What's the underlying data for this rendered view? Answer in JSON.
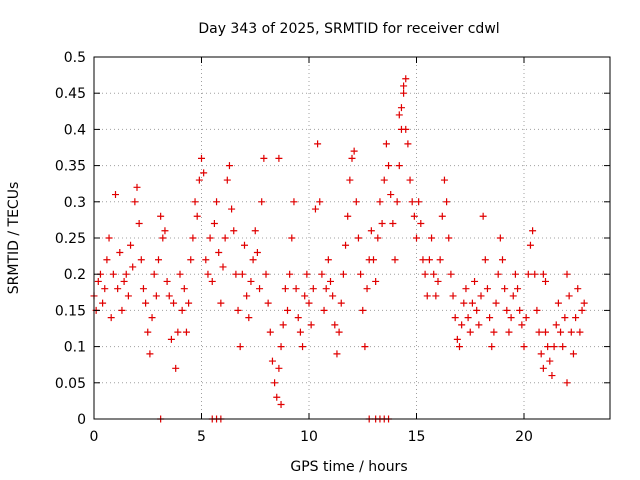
{
  "chart_data": {
    "type": "scatter",
    "title": "Day 343 of 2025, SRMTID for receiver cdwl",
    "xlabel": "GPS time / hours",
    "ylabel": "SRMTID / TECUs",
    "xlim": [
      0,
      24
    ],
    "ylim": [
      0,
      0.5
    ],
    "x_ticks": [
      0,
      5,
      10,
      15,
      20
    ],
    "x_tick_labels": [
      "0",
      "5",
      "10",
      "15",
      "20"
    ],
    "y_ticks": [
      0,
      0.05,
      0.1,
      0.15,
      0.2,
      0.25,
      0.3,
      0.35,
      0.4,
      0.45,
      0.5
    ],
    "y_tick_labels": [
      "0",
      "0.05",
      "0.1",
      "0.15",
      "0.2",
      "0.25",
      "0.3",
      "0.35",
      "0.4",
      "0.45",
      "0.5"
    ],
    "grid": true,
    "marker": "+",
    "color": "#e00000",
    "series": [
      {
        "name": "SRMTID",
        "x": [
          0.0,
          0.1,
          0.2,
          0.3,
          0.4,
          0.5,
          0.6,
          0.7,
          0.8,
          0.9,
          1.0,
          1.1,
          1.2,
          1.3,
          1.4,
          1.5,
          1.6,
          1.7,
          1.8,
          1.9,
          2.0,
          2.1,
          2.2,
          2.3,
          2.4,
          2.5,
          2.6,
          2.7,
          2.8,
          2.9,
          3.0,
          3.1,
          3.2,
          3.3,
          3.4,
          3.5,
          3.6,
          3.7,
          3.8,
          3.9,
          4.0,
          4.1,
          4.2,
          4.3,
          4.4,
          4.5,
          4.6,
          4.7,
          4.8,
          4.9,
          5.0,
          5.1,
          5.2,
          5.3,
          5.4,
          5.5,
          5.6,
          5.7,
          5.8,
          5.9,
          6.0,
          6.1,
          6.2,
          6.3,
          6.4,
          6.5,
          6.6,
          6.7,
          6.8,
          6.9,
          7.0,
          7.1,
          7.2,
          7.3,
          7.4,
          7.5,
          7.6,
          7.7,
          7.8,
          7.9,
          8.0,
          8.1,
          8.2,
          8.3,
          8.4,
          8.5,
          8.6,
          8.7,
          8.8,
          8.9,
          9.0,
          9.1,
          9.2,
          9.3,
          9.4,
          9.5,
          9.6,
          9.7,
          9.8,
          9.9,
          10.0,
          10.1,
          10.2,
          10.3,
          10.4,
          10.5,
          10.6,
          10.7,
          10.8,
          10.9,
          11.0,
          11.1,
          11.2,
          11.3,
          11.4,
          11.5,
          11.6,
          11.7,
          11.8,
          11.9,
          12.0,
          12.1,
          12.2,
          12.3,
          12.4,
          12.5,
          12.6,
          12.7,
          12.8,
          12.9,
          13.0,
          13.1,
          13.2,
          13.3,
          13.4,
          13.5,
          13.6,
          13.7,
          13.8,
          13.9,
          14.0,
          14.1,
          14.2,
          14.3,
          14.4,
          14.5,
          14.6,
          14.7,
          14.8,
          14.9,
          15.0,
          15.1,
          15.2,
          15.3,
          15.4,
          15.5,
          15.6,
          15.7,
          15.8,
          15.9,
          16.0,
          16.1,
          16.2,
          16.3,
          16.4,
          16.5,
          16.6,
          16.7,
          16.8,
          16.9,
          17.0,
          17.1,
          17.2,
          17.3,
          17.4,
          17.5,
          17.6,
          17.7,
          17.8,
          17.9,
          18.0,
          18.1,
          18.2,
          18.3,
          18.4,
          18.5,
          18.6,
          18.7,
          18.8,
          18.9,
          19.0,
          19.1,
          19.2,
          19.3,
          19.4,
          19.5,
          19.6,
          19.7,
          19.8,
          19.9,
          20.0,
          20.1,
          20.2,
          20.3,
          20.4,
          20.5,
          20.6,
          20.7,
          20.8,
          20.9,
          21.0,
          21.1,
          21.2,
          21.3,
          21.4,
          21.5,
          21.6,
          21.7,
          21.8,
          21.9,
          22.0,
          22.1,
          22.2,
          22.3,
          22.4,
          22.5,
          22.6,
          22.7,
          22.8,
          3.1,
          5.5,
          5.7,
          5.9,
          12.8,
          13.1,
          13.3,
          13.5,
          13.7,
          14.3,
          14.4,
          14.5,
          14.2,
          8.6,
          8.7,
          20.9,
          21.0,
          22.0
        ],
        "y": [
          0.17,
          0.15,
          0.19,
          0.2,
          0.16,
          0.18,
          0.22,
          0.25,
          0.14,
          0.2,
          0.31,
          0.18,
          0.23,
          0.15,
          0.19,
          0.2,
          0.17,
          0.24,
          0.21,
          0.3,
          0.32,
          0.27,
          0.22,
          0.18,
          0.16,
          0.12,
          0.09,
          0.14,
          0.2,
          0.17,
          0.22,
          0.28,
          0.25,
          0.26,
          0.19,
          0.17,
          0.11,
          0.16,
          0.07,
          0.12,
          0.2,
          0.15,
          0.18,
          0.12,
          0.16,
          0.22,
          0.25,
          0.3,
          0.28,
          0.33,
          0.36,
          0.34,
          0.22,
          0.2,
          0.25,
          0.19,
          0.27,
          0.3,
          0.23,
          0.16,
          0.21,
          0.25,
          0.33,
          0.35,
          0.29,
          0.26,
          0.2,
          0.15,
          0.1,
          0.2,
          0.24,
          0.17,
          0.14,
          0.19,
          0.22,
          0.26,
          0.23,
          0.18,
          0.3,
          0.36,
          0.2,
          0.16,
          0.12,
          0.08,
          0.05,
          0.03,
          0.07,
          0.1,
          0.13,
          0.18,
          0.15,
          0.2,
          0.25,
          0.3,
          0.18,
          0.14,
          0.12,
          0.1,
          0.17,
          0.2,
          0.16,
          0.13,
          0.18,
          0.29,
          0.38,
          0.3,
          0.2,
          0.15,
          0.18,
          0.22,
          0.19,
          0.17,
          0.13,
          0.09,
          0.12,
          0.16,
          0.2,
          0.24,
          0.28,
          0.33,
          0.36,
          0.37,
          0.3,
          0.25,
          0.2,
          0.15,
          0.1,
          0.18,
          0.22,
          0.26,
          0.22,
          0.19,
          0.25,
          0.3,
          0.27,
          0.33,
          0.38,
          0.35,
          0.31,
          0.27,
          0.22,
          0.3,
          0.35,
          0.4,
          0.45,
          0.47,
          0.38,
          0.33,
          0.3,
          0.28,
          0.25,
          0.3,
          0.27,
          0.22,
          0.2,
          0.17,
          0.22,
          0.25,
          0.2,
          0.17,
          0.19,
          0.22,
          0.28,
          0.33,
          0.3,
          0.25,
          0.2,
          0.17,
          0.14,
          0.11,
          0.1,
          0.13,
          0.16,
          0.18,
          0.14,
          0.12,
          0.16,
          0.19,
          0.15,
          0.13,
          0.17,
          0.28,
          0.22,
          0.18,
          0.14,
          0.1,
          0.12,
          0.16,
          0.2,
          0.25,
          0.22,
          0.18,
          0.15,
          0.12,
          0.14,
          0.17,
          0.2,
          0.18,
          0.15,
          0.13,
          0.1,
          0.14,
          0.2,
          0.24,
          0.26,
          0.2,
          0.15,
          0.12,
          0.09,
          0.07,
          0.12,
          0.1,
          0.08,
          0.06,
          0.1,
          0.13,
          0.16,
          0.12,
          0.1,
          0.14,
          0.2,
          0.17,
          0.12,
          0.09,
          0.14,
          0.18,
          0.12,
          0.15,
          0.16,
          0.0,
          0.0,
          0.0,
          0.0,
          0.0,
          0.0,
          0.0,
          0.0,
          0.0,
          0.43,
          0.46,
          0.4,
          0.42,
          0.36,
          0.02,
          0.2,
          0.19,
          0.05
        ]
      }
    ]
  }
}
